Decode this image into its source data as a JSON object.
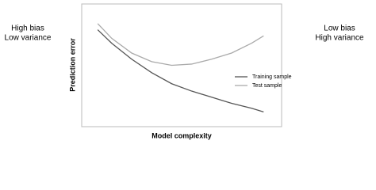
{
  "chart_data": {
    "type": "line",
    "x_label": "Model complexity",
    "y_label": "Prediction error",
    "annotations": [
      [
        "High bias",
        "Low variance"
      ],
      [
        "Low bias",
        "High variance"
      ]
    ],
    "x": [
      0.8,
      1.5,
      2.5,
      3.5,
      4.5,
      5.5,
      6.5,
      7.5,
      8.5,
      9.1
    ],
    "series": [
      {
        "name": "Training sample",
        "color": "#555555",
        "values": [
          7.9,
          6.8,
          5.5,
          4.4,
          3.5,
          2.9,
          2.4,
          1.9,
          1.5,
          1.2
        ]
      },
      {
        "name": "Test sample",
        "color": "#aaaaaa",
        "values": [
          8.4,
          7.2,
          6.0,
          5.3,
          5.0,
          5.1,
          5.5,
          6.0,
          6.8,
          7.4
        ]
      }
    ],
    "xlim": [
      0,
      10
    ],
    "ylim": [
      0,
      10
    ],
    "legend": "right"
  }
}
